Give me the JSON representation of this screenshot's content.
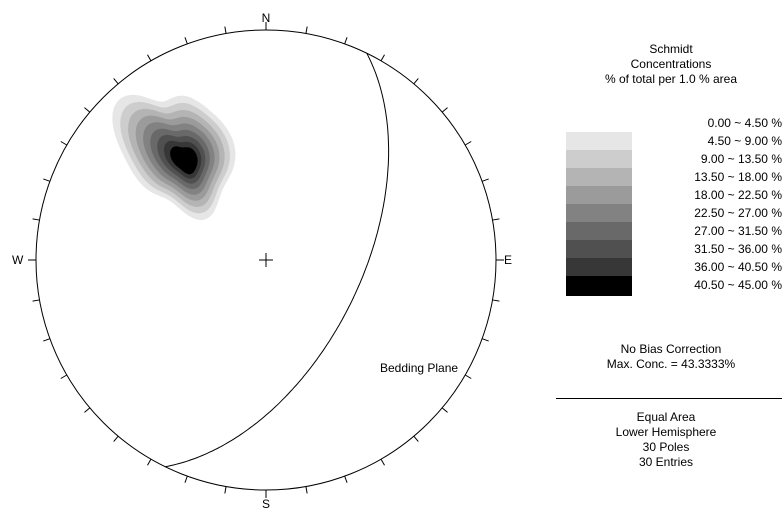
{
  "chart_data": {
    "type": "stereonet",
    "compass": {
      "north": "N",
      "south": "S",
      "east": "E",
      "west": "W"
    },
    "projection": "Equal Area",
    "hemisphere": "Lower Hemisphere",
    "great_circles": [
      {
        "label": "Bedding Plane",
        "strike": 26,
        "dip": 56
      }
    ],
    "pole_concentration_peak": {
      "trend": 321,
      "plunge": 42
    }
  },
  "legend": {
    "net_type": "Schmidt",
    "title": "Concentrations",
    "subtitle": "% of total per 1.0 % area",
    "bins": [
      {
        "label": "0.00 ~  4.50 %",
        "color": "#ffffff"
      },
      {
        "label": "4.50 ~  9.00 %",
        "color": "#e6e6e6"
      },
      {
        "label": "9.00 ~ 13.50 %",
        "color": "#cdcdcd"
      },
      {
        "label": "13.50 ~ 18.00 %",
        "color": "#b4b4b4"
      },
      {
        "label": "18.00 ~ 22.50 %",
        "color": "#9b9b9b"
      },
      {
        "label": "22.50 ~ 27.00 %",
        "color": "#828282"
      },
      {
        "label": "27.00 ~ 31.50 %",
        "color": "#696969"
      },
      {
        "label": "31.50 ~ 36.00 %",
        "color": "#505050"
      },
      {
        "label": "36.00 ~ 40.50 %",
        "color": "#373737"
      },
      {
        "label": "40.50 ~ 45.00 %",
        "color": "#000000"
      }
    ],
    "bias_correction": "No Bias Correction",
    "max_conc": "Max. Conc. = 43.3333%",
    "projection": "Equal Area",
    "hemisphere": "Lower Hemisphere",
    "poles": "30 Poles",
    "entries": "30 Entries"
  }
}
